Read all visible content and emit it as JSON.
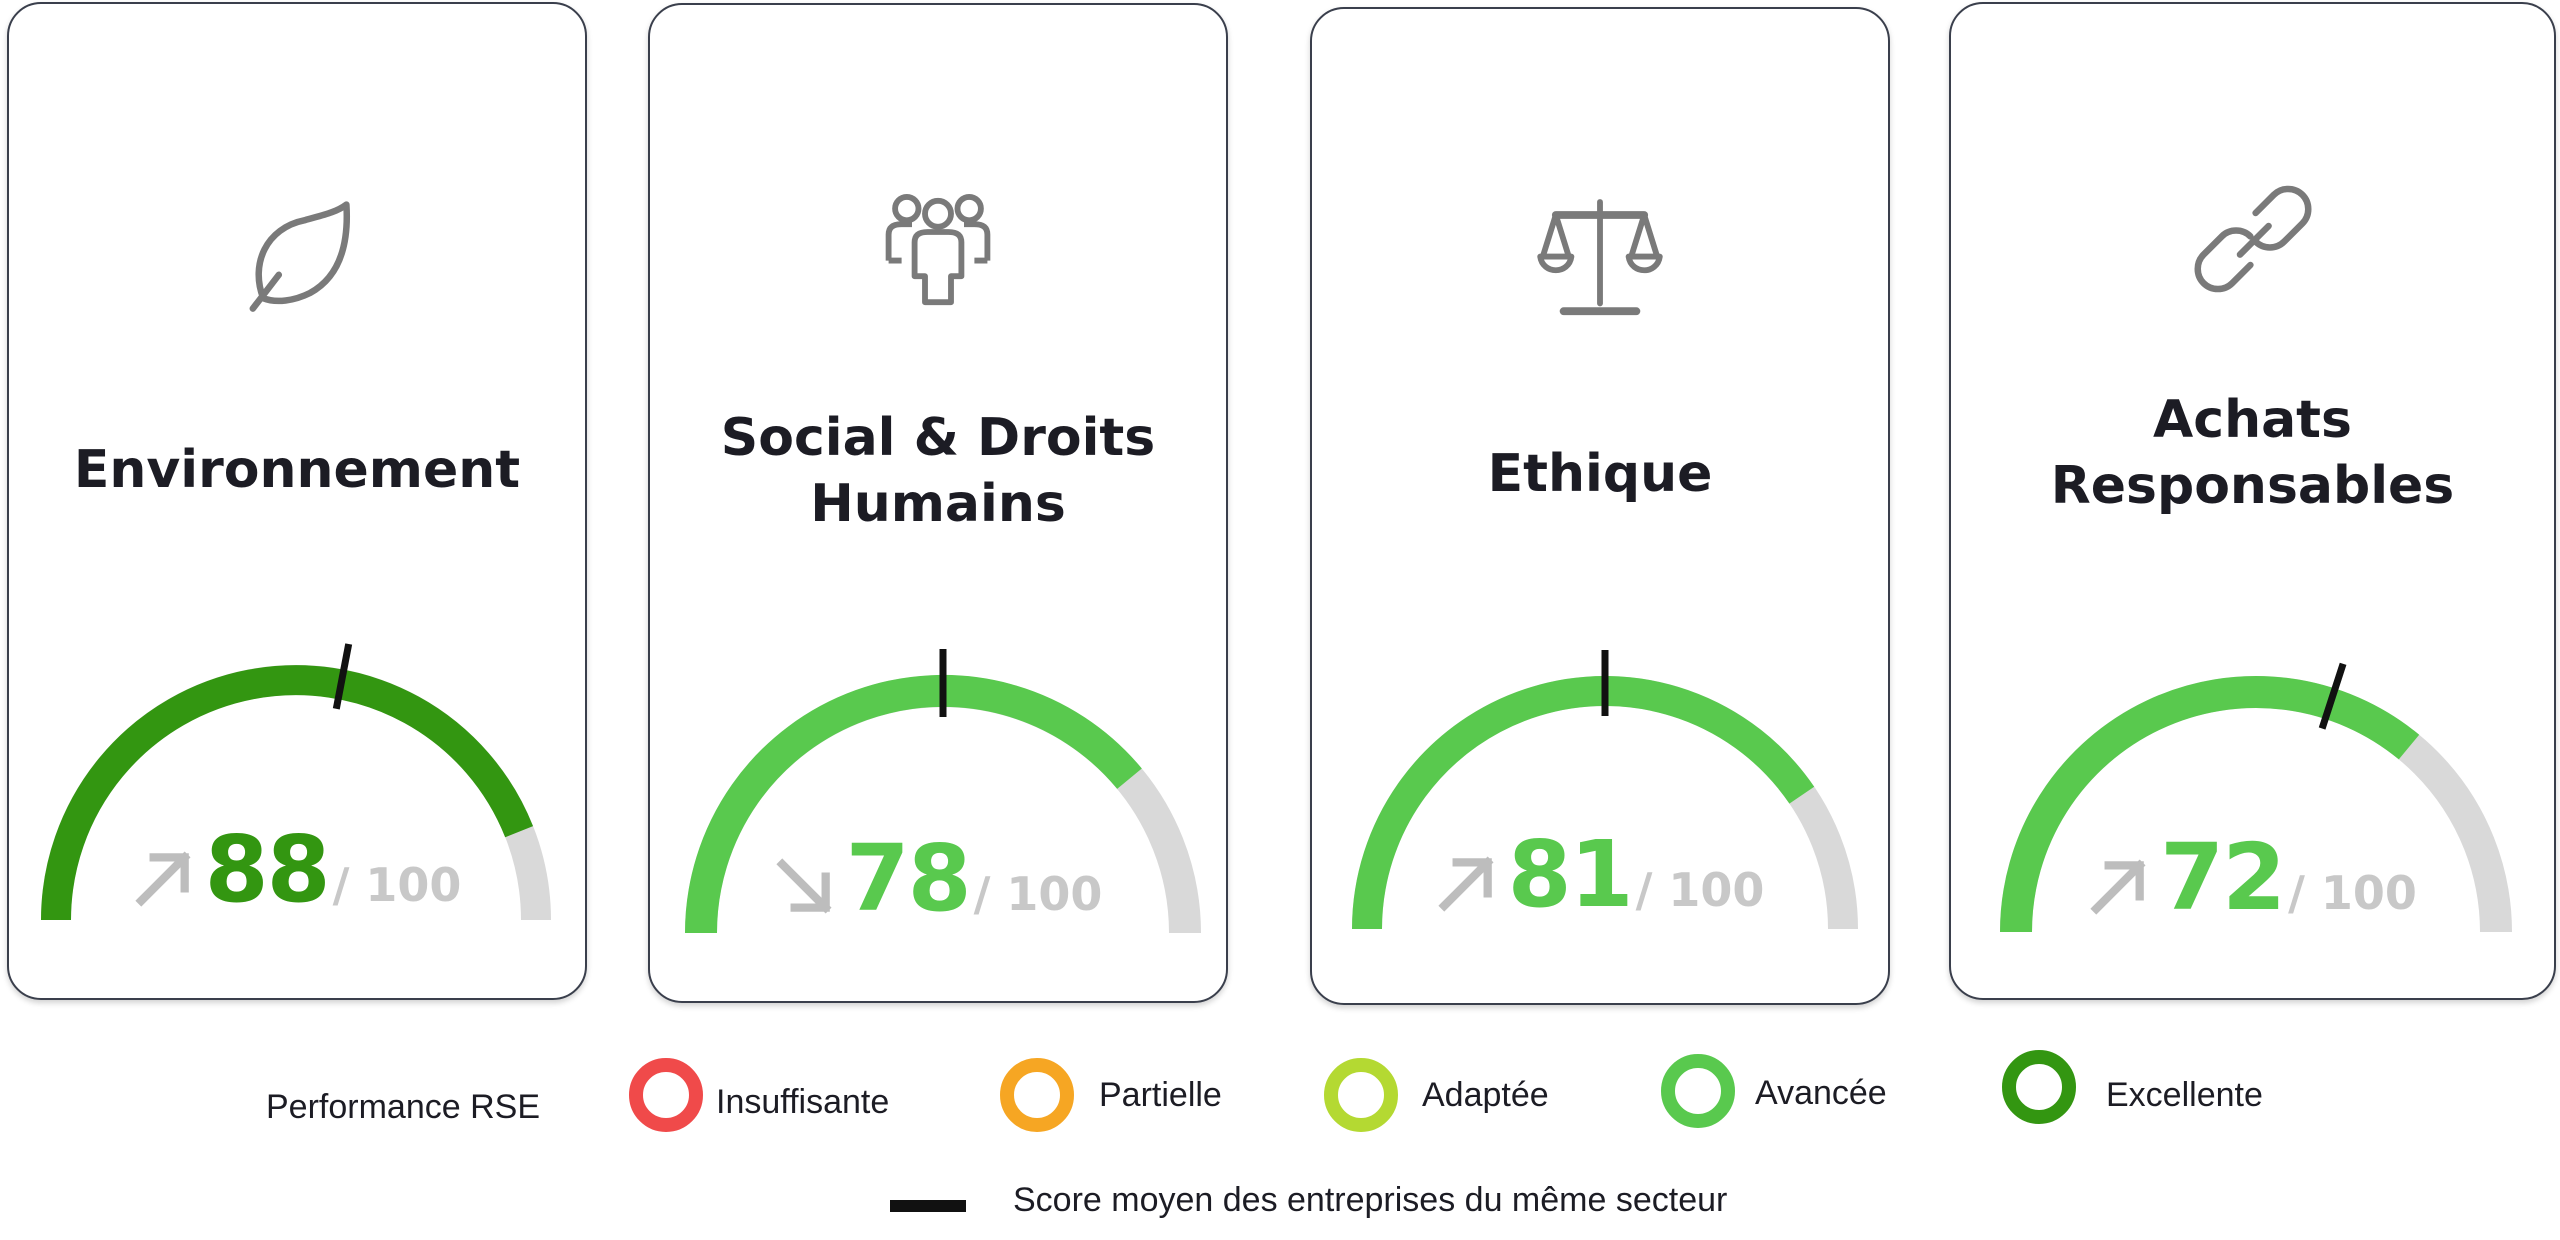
{
  "cards": [
    {
      "icon": "leaf-icon",
      "title": "Environnement",
      "score": "88",
      "score_max": "/ 100",
      "score_fraction": 0.88,
      "sector_average_fraction": 0.56,
      "trend": "up",
      "trend_icon": "arrow-up-right-icon",
      "color": "#339611"
    },
    {
      "icon": "people-group-icon",
      "title": "Social & Droits\nHumains",
      "score": "78",
      "score_max": "/ 100",
      "score_fraction": 0.78,
      "sector_average_fraction": 0.5,
      "trend": "down",
      "trend_icon": "arrow-down-right-icon",
      "color": "#59c94e"
    },
    {
      "icon": "scales-icon",
      "title": "Ethique",
      "score": "81",
      "score_max": "/ 100",
      "score_fraction": 0.81,
      "sector_average_fraction": 0.5,
      "trend": "up",
      "trend_icon": "arrow-up-right-icon",
      "color": "#59c94e"
    },
    {
      "icon": "chain-link-icon",
      "title": "Achats\nResponsables",
      "score": "72",
      "score_max": "/ 100",
      "score_fraction": 0.72,
      "sector_average_fraction": 0.6,
      "trend": "up",
      "trend_icon": "arrow-up-right-icon",
      "color": "#59c94e"
    }
  ],
  "legend": {
    "title": "Performance RSE",
    "levels": [
      {
        "label": "Insuffisante",
        "color": "#f04a4a"
      },
      {
        "label": "Partielle",
        "color": "#f6a623"
      },
      {
        "label": "Adaptée",
        "color": "#b4d932"
      },
      {
        "label": "Avancée",
        "color": "#59c94e"
      },
      {
        "label": "Excellente",
        "color": "#339611"
      }
    ],
    "average_label": "Score moyen des entreprises du même secteur"
  },
  "colors": {
    "track": "#d9d9d9",
    "marker": "#111111",
    "icon": "#7a7a7a",
    "trend_arrow": "#bdbdbd"
  }
}
